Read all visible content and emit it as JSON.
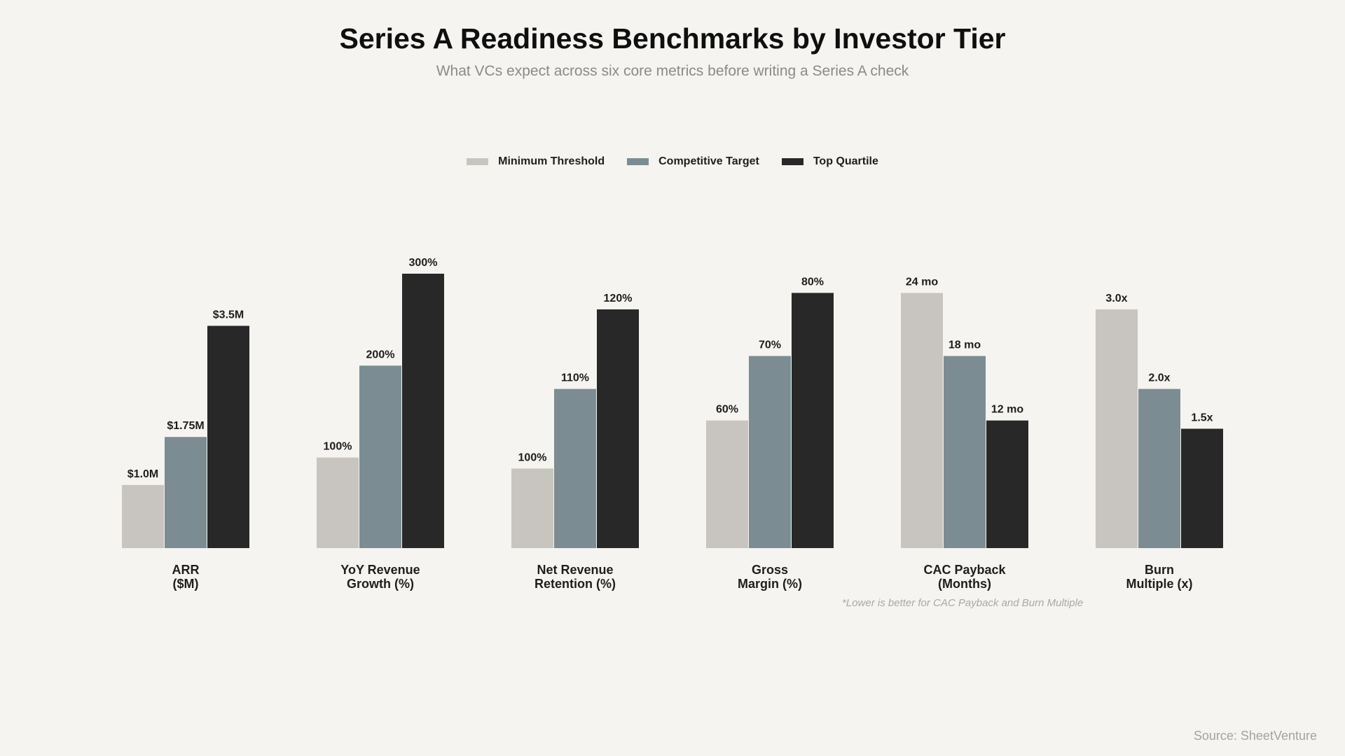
{
  "colors": {
    "background": "#f5f4f0",
    "minimum": "#c8c5c0",
    "competitive": "#7b8d93",
    "top": "#282828"
  },
  "chart_data": {
    "type": "bar",
    "title": "Series A Readiness Benchmarks by Investor Tier",
    "subtitle": "What VCs expect across six core metrics before writing a Series A check",
    "legend_position": "top-center",
    "grid": false,
    "categories": [
      [
        "ARR",
        "($M)"
      ],
      [
        "YoY Revenue",
        "Growth (%)"
      ],
      [
        "Net Revenue",
        "Retention (%)"
      ],
      [
        "Gross",
        "Margin (%)"
      ],
      [
        "CAC Payback",
        "(Months)"
      ],
      [
        "Burn",
        "Multiple (x)"
      ]
    ],
    "series": [
      {
        "name": "Minimum Threshold",
        "color": "#c8c5c0",
        "heights_relative": [
          0.23,
          0.33,
          0.29,
          0.465,
          0.93,
          0.87
        ],
        "labels": [
          "$1.0M",
          "100%",
          "100%",
          "60%",
          "24 mo",
          "3.0x"
        ]
      },
      {
        "name": "Competitive Target",
        "color": "#7b8d93",
        "heights_relative": [
          0.405,
          0.665,
          0.58,
          0.7,
          0.7,
          0.58
        ],
        "labels": [
          "$1.75M",
          "200%",
          "110%",
          "70%",
          "18 mo",
          "2.0x"
        ]
      },
      {
        "name": "Top Quartile",
        "color": "#282828",
        "heights_relative": [
          0.81,
          1.0,
          0.87,
          0.93,
          0.465,
          0.435
        ],
        "labels": [
          "$3.5M",
          "300%",
          "120%",
          "80%",
          "12 mo",
          "1.5x"
        ]
      }
    ],
    "footnote": "*Lower is better for CAC Payback and Burn Multiple",
    "source": "Source: SheetVenture"
  }
}
